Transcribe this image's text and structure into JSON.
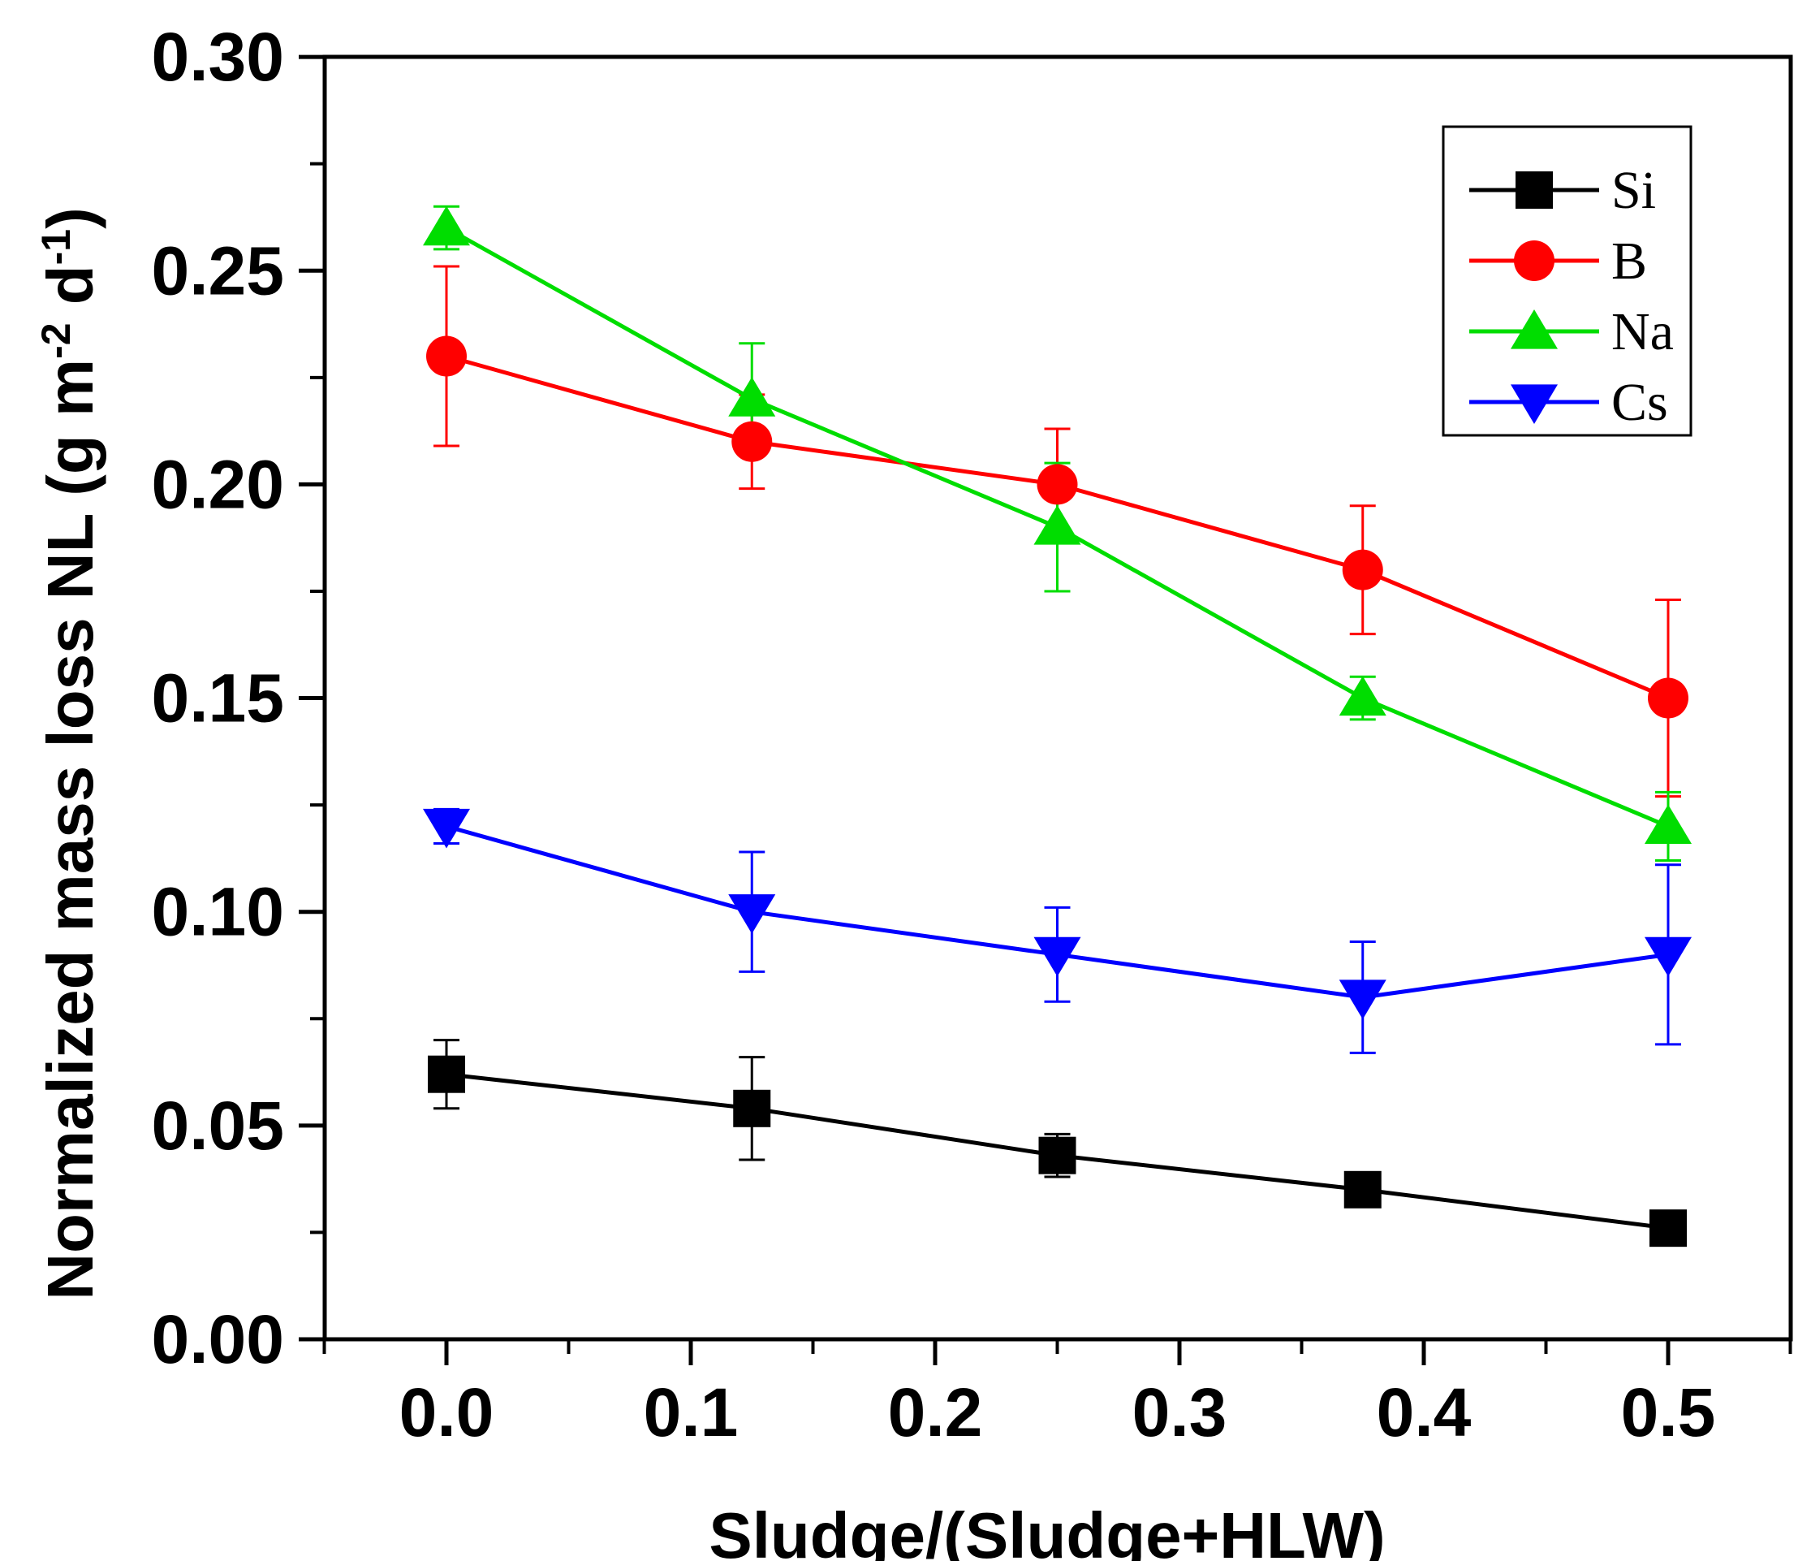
{
  "chart_data": {
    "type": "line",
    "title": "",
    "xlabel": "Sludge/(Sludge+HLW)",
    "ylabel": {
      "main": "Normalized mass loss NL (g m",
      "exp1": "-2",
      "mid": " d",
      "exp2": "-1",
      "end": ")"
    },
    "xlim": [
      -0.05,
      0.55
    ],
    "ylim": [
      0.0,
      0.3
    ],
    "x_ticks": [
      "0.0",
      "0.1",
      "0.2",
      "0.3",
      "0.4",
      "0.5"
    ],
    "y_ticks": [
      "0.00",
      "0.05",
      "0.10",
      "0.15",
      "0.20",
      "0.25",
      "0.30"
    ],
    "x": [
      0.0,
      0.125,
      0.25,
      0.375,
      0.5
    ],
    "series": [
      {
        "name": "Si",
        "color": "#000000",
        "marker": "square",
        "values": [
          0.062,
          0.054,
          0.043,
          0.035,
          0.026
        ],
        "errors": [
          0.008,
          0.012,
          0.005,
          0.0,
          0.0
        ]
      },
      {
        "name": "B",
        "color": "#ff0000",
        "marker": "circle",
        "values": [
          0.23,
          0.21,
          0.2,
          0.18,
          0.15
        ],
        "errors": [
          0.021,
          0.011,
          0.013,
          0.015,
          0.023
        ]
      },
      {
        "name": "Na",
        "color": "#00dd00",
        "marker": "triangle-up",
        "values": [
          0.26,
          0.22,
          0.19,
          0.15,
          0.12
        ],
        "errors": [
          0.005,
          0.013,
          0.015,
          0.005,
          0.008
        ]
      },
      {
        "name": "Cs",
        "color": "#0000ff",
        "marker": "triangle-down",
        "values": [
          0.12,
          0.1,
          0.09,
          0.08,
          0.09
        ],
        "errors": [
          0.004,
          0.014,
          0.011,
          0.013,
          0.021
        ]
      }
    ],
    "legend_position": "top-right"
  }
}
